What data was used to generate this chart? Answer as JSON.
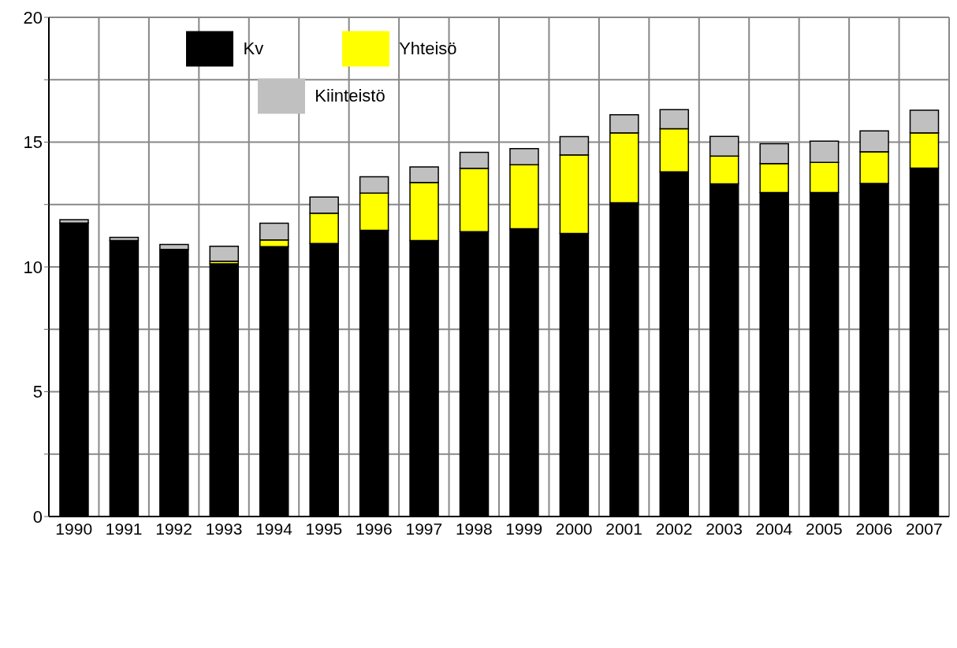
{
  "chart_data": {
    "type": "bar",
    "stacked": true,
    "categories": [
      "1990",
      "1991",
      "1992",
      "1993",
      "1994",
      "1995",
      "1996",
      "1997",
      "1998",
      "1999",
      "2000",
      "2001",
      "2002",
      "2003",
      "2004",
      "2005",
      "2006",
      "2007"
    ],
    "series": [
      {
        "name": "Kv",
        "color": "#000000",
        "values": [
          11.76,
          11.06,
          10.7,
          10.13,
          10.81,
          10.94,
          11.47,
          11.06,
          11.41,
          11.53,
          11.34,
          12.57,
          13.81,
          13.33,
          12.98,
          12.98,
          13.34,
          13.96
        ]
      },
      {
        "name": "Yhteisö",
        "color": "#ffff00",
        "values": [
          0,
          0,
          0,
          0.1,
          0.27,
          1.21,
          1.49,
          2.32,
          2.54,
          2.56,
          3.15,
          2.8,
          1.73,
          1.11,
          1.16,
          1.21,
          1.27,
          1.41
        ]
      },
      {
        "name": "Kiinteistö",
        "color": "#c0c0c0",
        "values": [
          0.13,
          0.12,
          0.2,
          0.6,
          0.67,
          0.65,
          0.65,
          0.63,
          0.64,
          0.65,
          0.73,
          0.73,
          0.76,
          0.79,
          0.8,
          0.85,
          0.84,
          0.91
        ]
      }
    ],
    "ylim": [
      0,
      20
    ],
    "yticks": [
      0,
      {
        "value": 2.5,
        "label": null
      },
      5,
      {
        "value": 7.5,
        "label": null
      },
      10,
      {
        "value": 12.5,
        "label": null
      },
      15,
      {
        "value": 17.5,
        "label": null
      },
      20
    ],
    "grid": true,
    "legend": "top left"
  }
}
